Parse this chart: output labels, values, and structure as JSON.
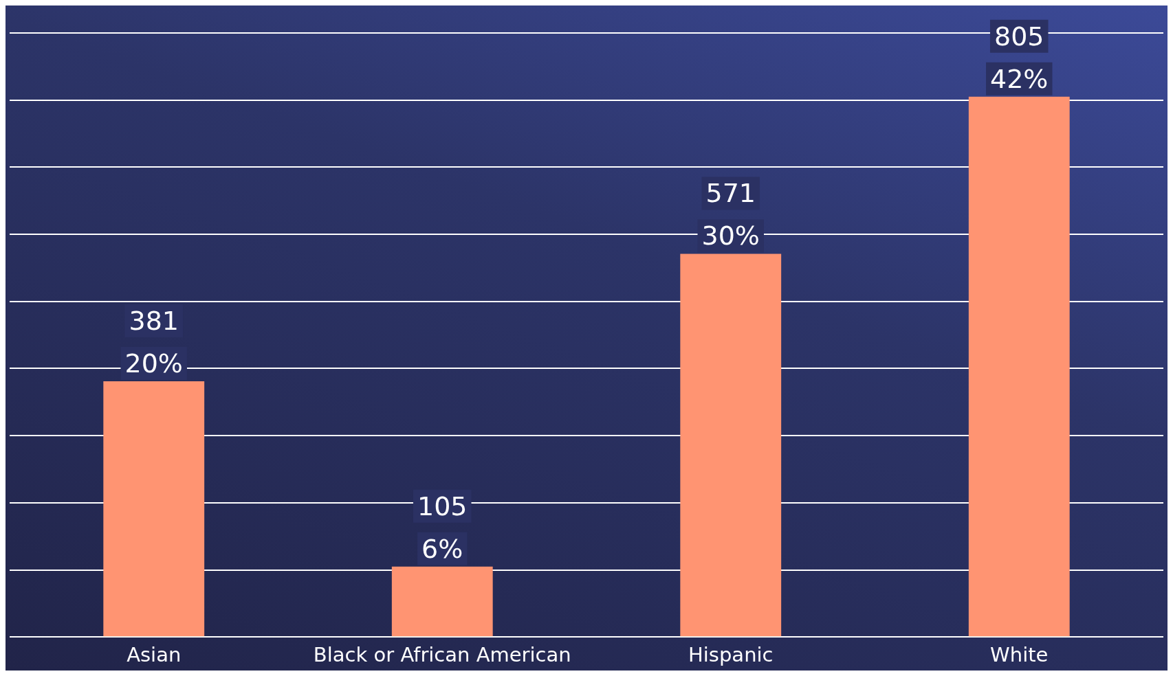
{
  "chart_data": {
    "type": "bar",
    "categories": [
      "Asian",
      "Black or African American",
      "Hispanic",
      "White"
    ],
    "values": [
      381,
      105,
      571,
      805
    ],
    "value_labels": [
      "381\n20%",
      "105\n6%",
      "571\n30%",
      "805\n42%"
    ],
    "color": "#ff9472",
    "ylim": [
      0,
      900
    ],
    "yticks": [
      {
        "value": 0,
        "label": null
      },
      {
        "value": 100,
        "label": null
      },
      {
        "value": 200,
        "label": null
      },
      {
        "value": 300,
        "label": null
      },
      {
        "value": 400,
        "label": null
      },
      {
        "value": 500,
        "label": null
      },
      {
        "value": 600,
        "label": null
      },
      {
        "value": 700,
        "label": null
      },
      {
        "value": 800,
        "label": null
      },
      {
        "value": 900,
        "label": null
      }
    ],
    "tick_labels": "x",
    "grid": "y"
  }
}
